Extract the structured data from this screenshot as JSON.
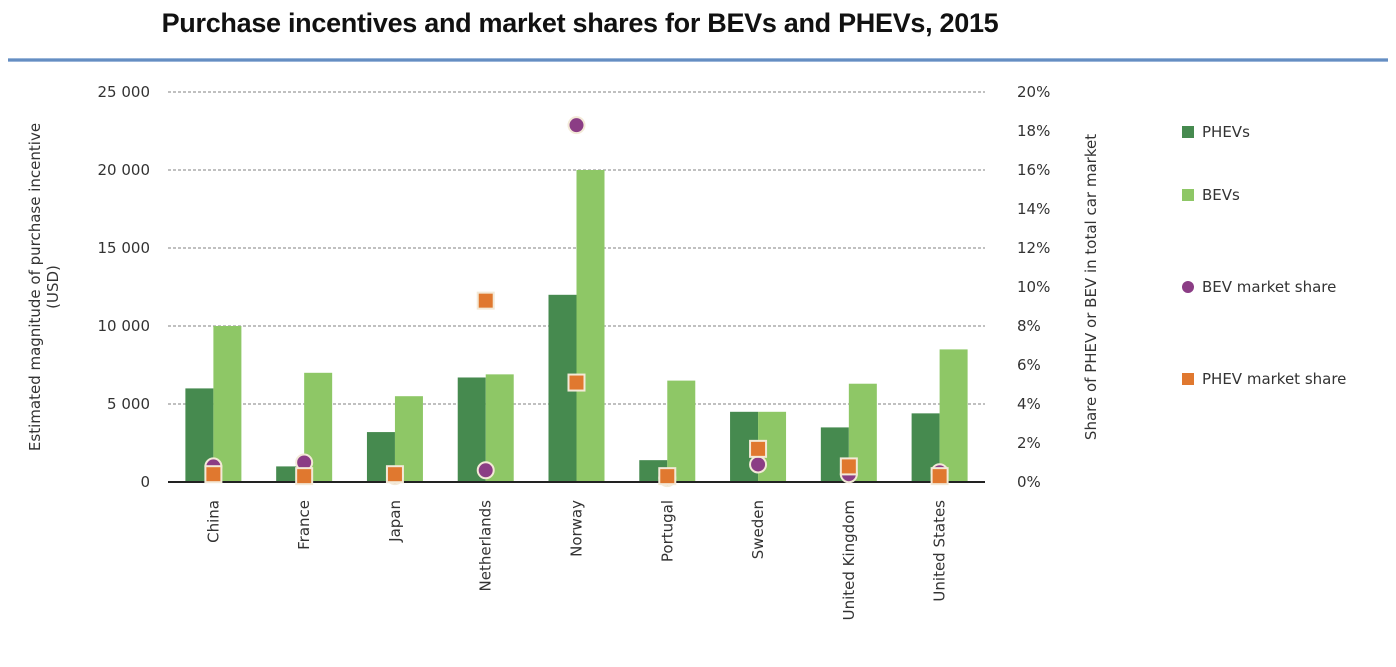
{
  "chart_data": {
    "type": "bar",
    "title": "Purchase incentives and market shares for BEVs and PHEVs, 2015",
    "categories": [
      "China",
      "France",
      "Japan",
      "Netherlands",
      "Norway",
      "Portugal",
      "Sweden",
      "United Kingdom",
      "United States"
    ],
    "ylabel": [
      "Estimated magnitude of purchase incentive",
      "(USD)"
    ],
    "y2label": "Share of PHEV or BEV in total car market",
    "ylim": [
      0,
      25000
    ],
    "y2lim": [
      0,
      20
    ],
    "yticks": [
      0,
      5000,
      10000,
      15000,
      20000,
      25000
    ],
    "ytick_labels": [
      "0",
      "5 000",
      "10 000",
      "15 000",
      "20 000",
      "25 000"
    ],
    "y2ticks": [
      0,
      2,
      4,
      6,
      8,
      10,
      12,
      14,
      16,
      18,
      20
    ],
    "y2tick_labels": [
      "0%",
      "2%",
      "4%",
      "6%",
      "8%",
      "10%",
      "12%",
      "14%",
      "16%",
      "18%",
      "20%"
    ],
    "grid": true,
    "legend_position": "right",
    "series": [
      {
        "name": "PHEVs",
        "kind": "bar",
        "axis": "left",
        "color": "#468a4f",
        "values": [
          6000,
          1000,
          3200,
          6700,
          12000,
          1400,
          4500,
          3500,
          4400
        ]
      },
      {
        "name": "BEVs",
        "kind": "bar",
        "axis": "left",
        "color": "#8ec766",
        "values": [
          10000,
          7000,
          5500,
          6900,
          20000,
          6500,
          4500,
          6300,
          8500
        ]
      },
      {
        "name": "BEV market share",
        "kind": "marker",
        "shape": "circle",
        "axis": "right",
        "color": "#8b3d85",
        "values": [
          0.8,
          1.0,
          0.3,
          0.6,
          18.3,
          0.2,
          0.9,
          0.4,
          0.5
        ]
      },
      {
        "name": "PHEV market share",
        "kind": "marker",
        "shape": "square",
        "axis": "right",
        "color": "#e0782f",
        "values": [
          0.4,
          0.3,
          0.4,
          9.3,
          5.1,
          0.3,
          1.7,
          0.8,
          0.3
        ]
      }
    ]
  }
}
